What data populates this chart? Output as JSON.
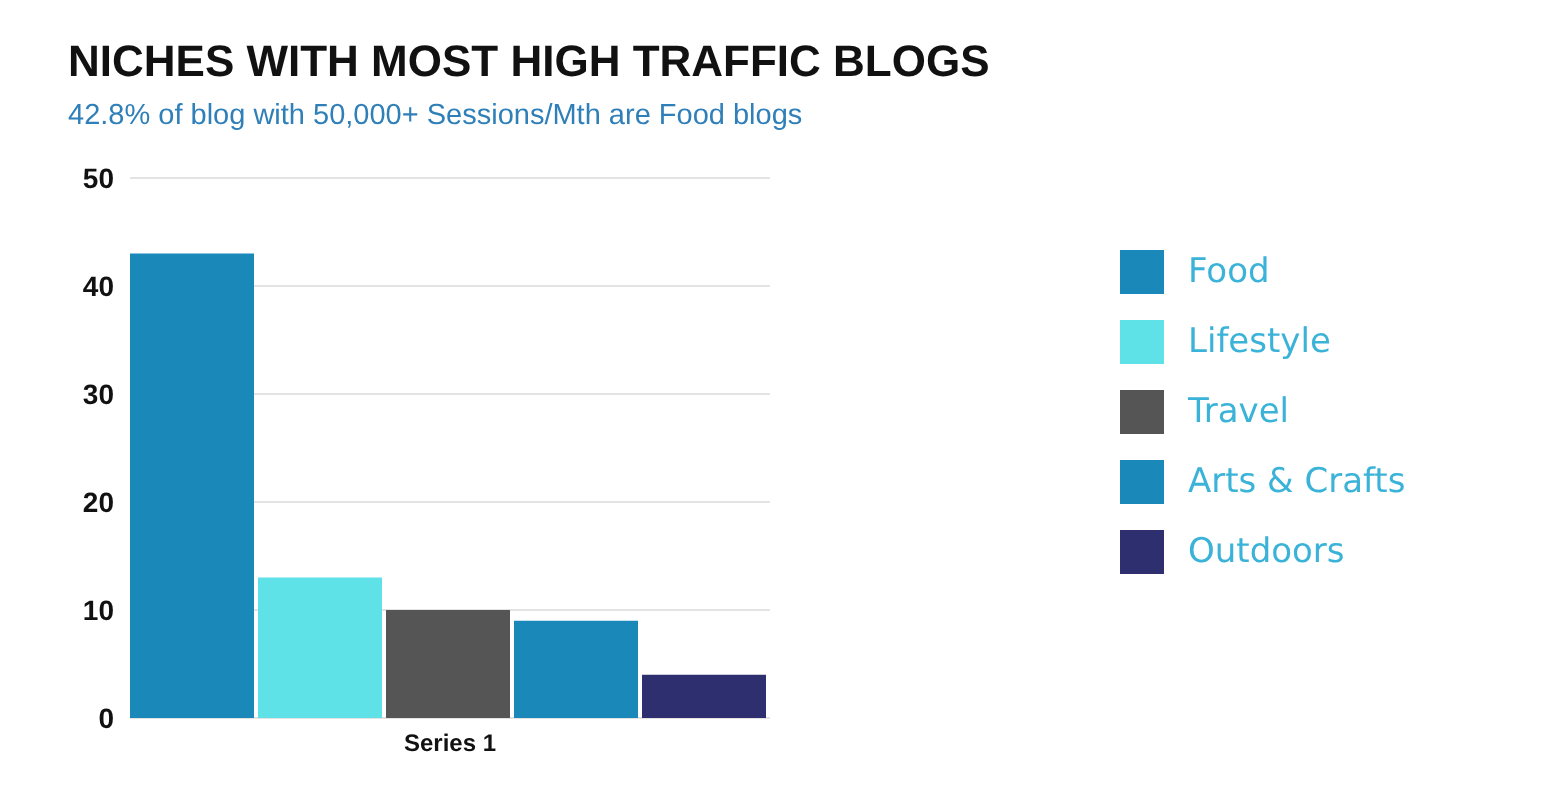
{
  "chart_data": {
    "type": "bar",
    "title": "NICHES WITH MOST HIGH TRAFFIC BLOGS",
    "subtitle": "42.8% of blog with 50,000+ Sessions/Mth are Food blogs",
    "categories": [
      "Series 1"
    ],
    "series": [
      {
        "name": "Food",
        "color": "#1a88b9",
        "values": [
          43
        ]
      },
      {
        "name": "Lifestyle",
        "color": "#5ee2e8",
        "values": [
          13
        ]
      },
      {
        "name": "Travel",
        "color": "#555555",
        "values": [
          10
        ]
      },
      {
        "name": "Arts & Crafts",
        "color": "#1a88b9",
        "values": [
          9
        ]
      },
      {
        "name": "Outdoors",
        "color": "#2e2f6e",
        "values": [
          4
        ]
      }
    ],
    "ylim": [
      0,
      50
    ],
    "yticks": [
      0,
      10,
      20,
      30,
      40,
      50
    ],
    "grid": "y",
    "legend": "right"
  }
}
